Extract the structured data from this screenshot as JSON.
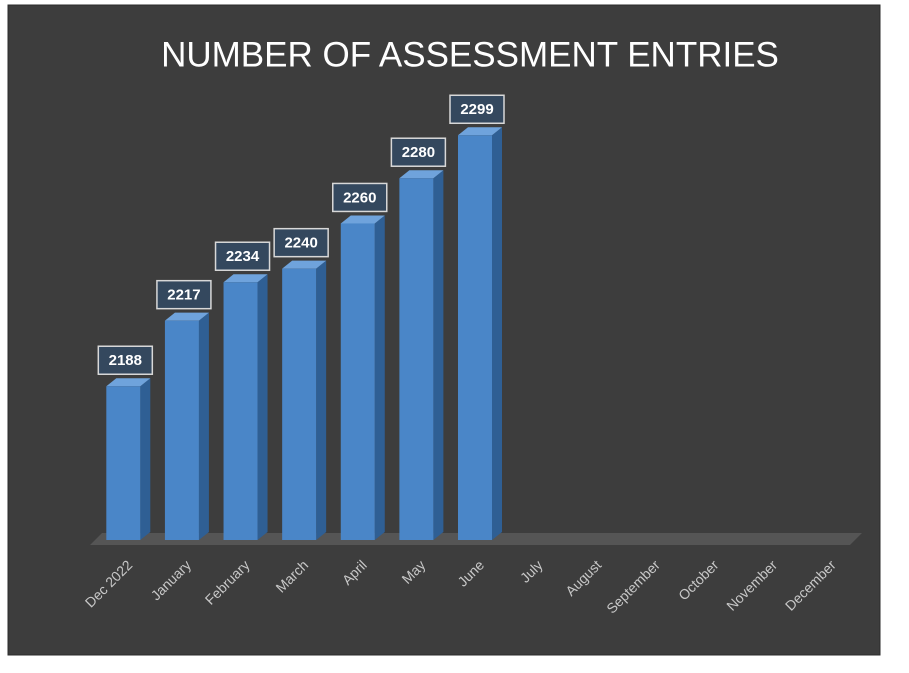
{
  "chart_data": {
    "type": "bar3d",
    "title": "NUMBER OF ASSESSMENT ENTRIES",
    "categories": [
      "Dec 2022",
      "January",
      "February",
      "March",
      "April",
      "May",
      "June",
      "July",
      "August",
      "September",
      "October",
      "November",
      "December"
    ],
    "values": [
      2188,
      2217,
      2234,
      2240,
      2260,
      2280,
      2299,
      null,
      null,
      null,
      null,
      null,
      null
    ],
    "color": "#4a86c8",
    "ylim": [
      2120,
      2300
    ]
  }
}
